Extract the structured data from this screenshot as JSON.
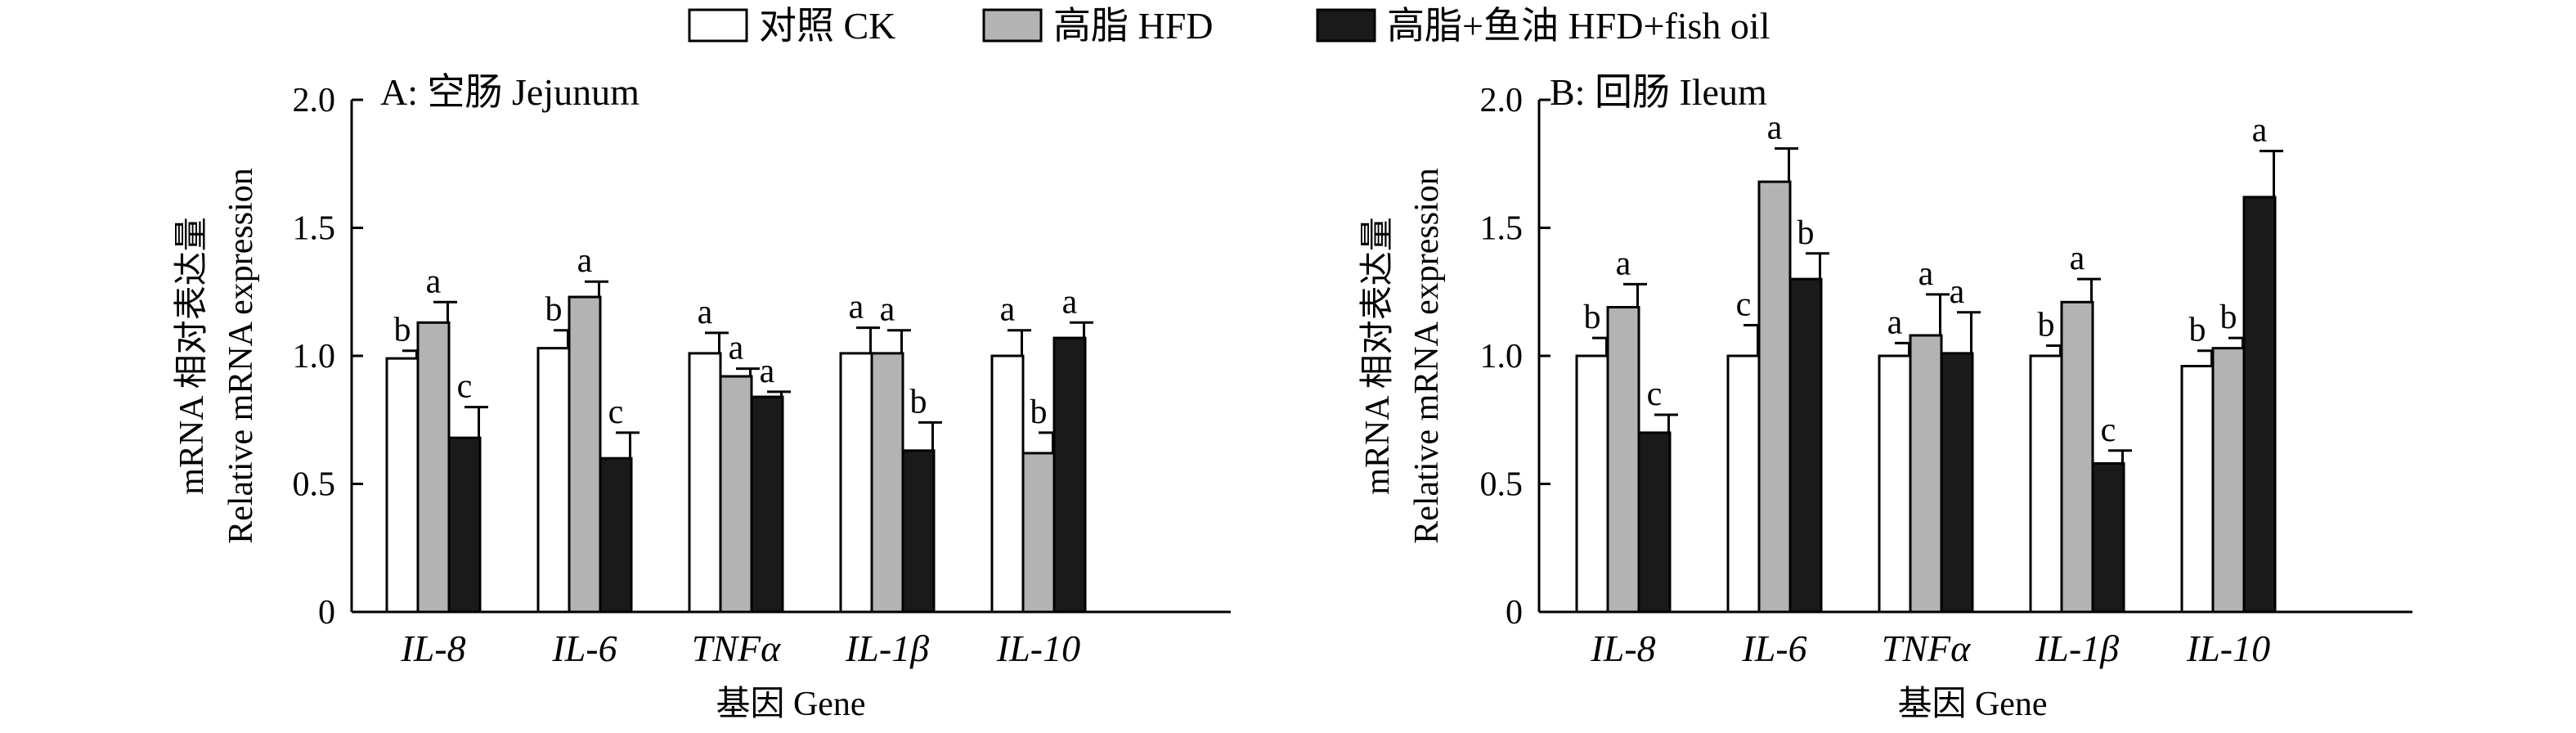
{
  "legend": {
    "items": [
      {
        "label": "对照 CK",
        "color": "#ffffff"
      },
      {
        "label": "高脂 HFD",
        "color": "#b3b3b3"
      },
      {
        "label": "高脂+鱼油 HFD+fish oil",
        "color": "#1a1a1a"
      }
    ]
  },
  "chart_data": [
    {
      "type": "bar",
      "panel_label": "A: 空肠 Jejunum",
      "categories": [
        "IL-8",
        "IL-6",
        "TNFα",
        "IL-1β",
        "IL-10"
      ],
      "xlabel": "基因 Gene",
      "ylabel_lines": [
        "mRNA 相对表达量",
        "Relative mRNA expression"
      ],
      "ylim": [
        0,
        2.0
      ],
      "yticks": [
        "0",
        "0.5",
        "1.0",
        "1.5",
        "2.0"
      ],
      "ytick_values": [
        0,
        0.5,
        1.0,
        1.5,
        2.0
      ],
      "series": [
        {
          "name": "对照 CK",
          "values": [
            0.99,
            1.03,
            1.01,
            1.01,
            1.0
          ],
          "errors": [
            0.03,
            0.07,
            0.08,
            0.1,
            0.1
          ],
          "labels": [
            "b",
            "b",
            "a",
            "a",
            "a"
          ]
        },
        {
          "name": "高脂 HFD",
          "values": [
            1.13,
            1.23,
            0.92,
            1.01,
            0.62
          ],
          "errors": [
            0.08,
            0.06,
            0.03,
            0.09,
            0.08
          ],
          "labels": [
            "a",
            "a",
            "a",
            "a",
            "b"
          ]
        },
        {
          "name": "高脂+鱼油 HFD+fish oil",
          "values": [
            0.68,
            0.6,
            0.84,
            0.63,
            1.07
          ],
          "errors": [
            0.12,
            0.1,
            0.02,
            0.11,
            0.06
          ],
          "labels": [
            "c",
            "c",
            "a",
            "b",
            "a"
          ]
        }
      ]
    },
    {
      "type": "bar",
      "panel_label": "B: 回肠 Ileum",
      "categories": [
        "IL-8",
        "IL-6",
        "TNFα",
        "IL-1β",
        "IL-10"
      ],
      "xlabel": "基因 Gene",
      "ylabel_lines": [
        "mRNA 相对表达量",
        "Relative mRNA expression"
      ],
      "ylim": [
        0,
        2.0
      ],
      "yticks": [
        "0",
        "0.5",
        "1.0",
        "1.5",
        "2.0"
      ],
      "ytick_values": [
        0,
        0.5,
        1.0,
        1.5,
        2.0
      ],
      "series": [
        {
          "name": "对照 CK",
          "values": [
            1.0,
            1.0,
            1.0,
            1.0,
            0.96
          ],
          "errors": [
            0.07,
            0.12,
            0.05,
            0.04,
            0.06
          ],
          "labels": [
            "b",
            "c",
            "a",
            "b",
            "b"
          ]
        },
        {
          "name": "高脂 HFD",
          "values": [
            1.19,
            1.68,
            1.08,
            1.21,
            1.03
          ],
          "errors": [
            0.09,
            0.13,
            0.16,
            0.09,
            0.04
          ],
          "labels": [
            "a",
            "a",
            "a",
            "a",
            "b"
          ]
        },
        {
          "name": "高脂+鱼油 HFD+fish oil",
          "values": [
            0.7,
            1.3,
            1.01,
            0.58,
            1.62
          ],
          "errors": [
            0.07,
            0.1,
            0.16,
            0.05,
            0.18
          ],
          "labels": [
            "c",
            "b",
            "a",
            "c",
            "a"
          ]
        }
      ]
    }
  ]
}
